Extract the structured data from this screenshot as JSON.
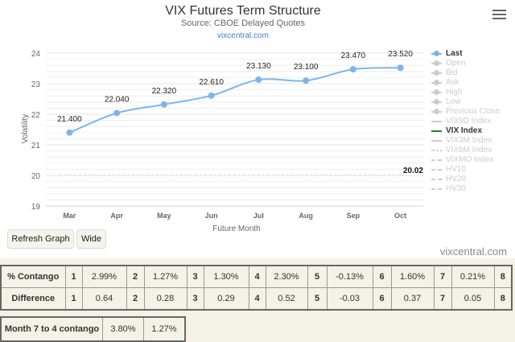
{
  "header": {
    "title": "VIX Futures Term Structure",
    "subtitle": "Source: CBOE Delayed Quotes",
    "link": "vixcentral.com",
    "menu_icon": "hamburger-menu-icon"
  },
  "chart_data": {
    "type": "line",
    "title": "VIX Futures Term Structure",
    "subtitle": "Source: CBOE Delayed Quotes",
    "xlabel": "Future Month",
    "ylabel": "Volatility",
    "categories": [
      "Mar",
      "Apr",
      "May",
      "Jun",
      "Jul",
      "Aug",
      "Sep",
      "Oct"
    ],
    "ylim": [
      19,
      24
    ],
    "yticks": [
      "19",
      "20",
      "21",
      "22",
      "23",
      "24"
    ],
    "grid": true,
    "legend_position": "right",
    "series": [
      {
        "name": "Last",
        "color": "#7cb5ec",
        "values": [
          21.4,
          22.04,
          22.32,
          22.61,
          23.13,
          23.1,
          23.47,
          23.52
        ],
        "labels": [
          "21.400",
          "22.040",
          "22.320",
          "22.610",
          "23.130",
          "23.100",
          "23.470",
          "23.520"
        ]
      },
      {
        "name": "VIX Index",
        "color": "#1a8a1a",
        "values": [
          20.02,
          20.02,
          20.02,
          20.02,
          20.02,
          20.02,
          20.02,
          20.02
        ],
        "end_label": "20.02"
      }
    ],
    "legend": [
      {
        "name": "Last",
        "active": true,
        "symbol": "dot"
      },
      {
        "name": "Open",
        "active": false,
        "symbol": "dot"
      },
      {
        "name": "Bid",
        "active": false,
        "symbol": "dot"
      },
      {
        "name": "Ask",
        "active": false,
        "symbol": "dot"
      },
      {
        "name": "High",
        "active": false,
        "symbol": "dot"
      },
      {
        "name": "Low",
        "active": false,
        "symbol": "dot"
      },
      {
        "name": "Previous Close",
        "active": false,
        "symbol": "dot"
      },
      {
        "name": "VIX9D Index",
        "active": false,
        "symbol": "line"
      },
      {
        "name": "VIX Index",
        "active": true,
        "symbol": "line"
      },
      {
        "name": "VIX3M Index",
        "active": false,
        "symbol": "line"
      },
      {
        "name": "VIX6M Index",
        "active": false,
        "symbol": "dotted"
      },
      {
        "name": "VIXMO Index",
        "active": false,
        "symbol": "dashed"
      },
      {
        "name": "HV10",
        "active": false,
        "symbol": "dashed"
      },
      {
        "name": "HV20",
        "active": false,
        "symbol": "dashed"
      },
      {
        "name": "HV30",
        "active": false,
        "symbol": "dashed"
      }
    ]
  },
  "buttons": {
    "refresh": "Refresh Graph",
    "wide": "Wide"
  },
  "credit": "vixcentral.com",
  "contango_table": {
    "rows": [
      {
        "label": "% Contango",
        "cells": [
          [
            "1",
            "2.99%"
          ],
          [
            "2",
            "1.27%"
          ],
          [
            "3",
            "1.30%"
          ],
          [
            "4",
            "2.30%"
          ],
          [
            "5",
            "-0.13%"
          ],
          [
            "6",
            "1.60%"
          ],
          [
            "7",
            "0.21%"
          ],
          [
            "8",
            ""
          ]
        ]
      },
      {
        "label": "Difference",
        "cells": [
          [
            "1",
            "0.64"
          ],
          [
            "2",
            "0.28"
          ],
          [
            "3",
            "0.29"
          ],
          [
            "4",
            "0.52"
          ],
          [
            "5",
            "-0.03"
          ],
          [
            "6",
            "0.37"
          ],
          [
            "7",
            "0.05"
          ],
          [
            "8",
            ""
          ]
        ]
      }
    ]
  },
  "month_table": {
    "label": "Month 7 to 4 contango",
    "value1": "3.80%",
    "value2": "1.27%"
  }
}
